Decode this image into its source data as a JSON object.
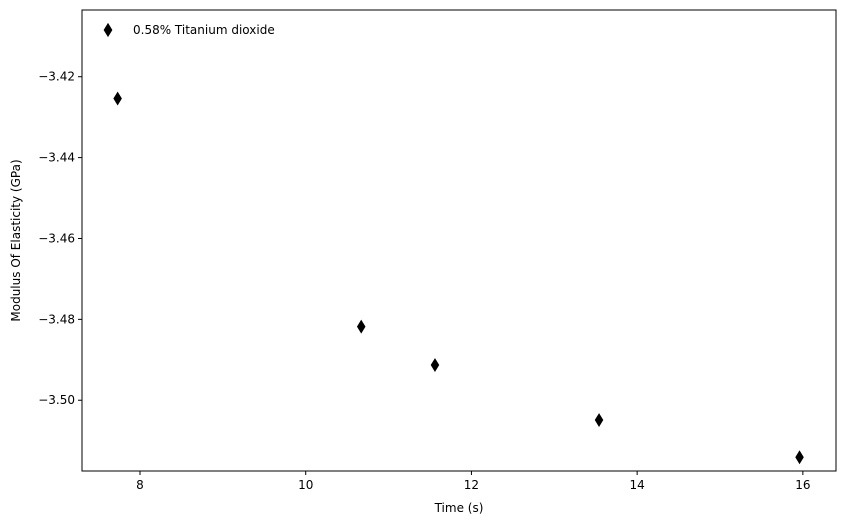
{
  "chart_data": {
    "type": "scatter",
    "title": "",
    "xlabel": "Time (s)",
    "ylabel": "Modulus Of Elasticity (GPa)",
    "xlim": [
      7.3,
      16.4
    ],
    "ylim": [
      -3.5175,
      -3.4035
    ],
    "xticks": [
      8,
      10,
      12,
      14,
      16
    ],
    "xtick_labels": [
      "8",
      "10",
      "12",
      "14",
      "16"
    ],
    "yticks": [
      -3.42,
      -3.44,
      -3.46,
      -3.48,
      -3.5
    ],
    "ytick_labels": [
      "−3.42",
      "−3.44",
      "−3.46",
      "−3.48",
      "−3.50"
    ],
    "grid": false,
    "legend_position": "top-left",
    "series": [
      {
        "name": "0.58% Titanium dioxide",
        "marker": "thin-diamond",
        "color": "#000000",
        "points": [
          {
            "x": 7.73,
            "y": -3.4254
          },
          {
            "x": 10.67,
            "y": -3.4818
          },
          {
            "x": 11.56,
            "y": -3.4913
          },
          {
            "x": 13.54,
            "y": -3.5049
          },
          {
            "x": 15.96,
            "y": -3.5141
          }
        ]
      }
    ]
  }
}
